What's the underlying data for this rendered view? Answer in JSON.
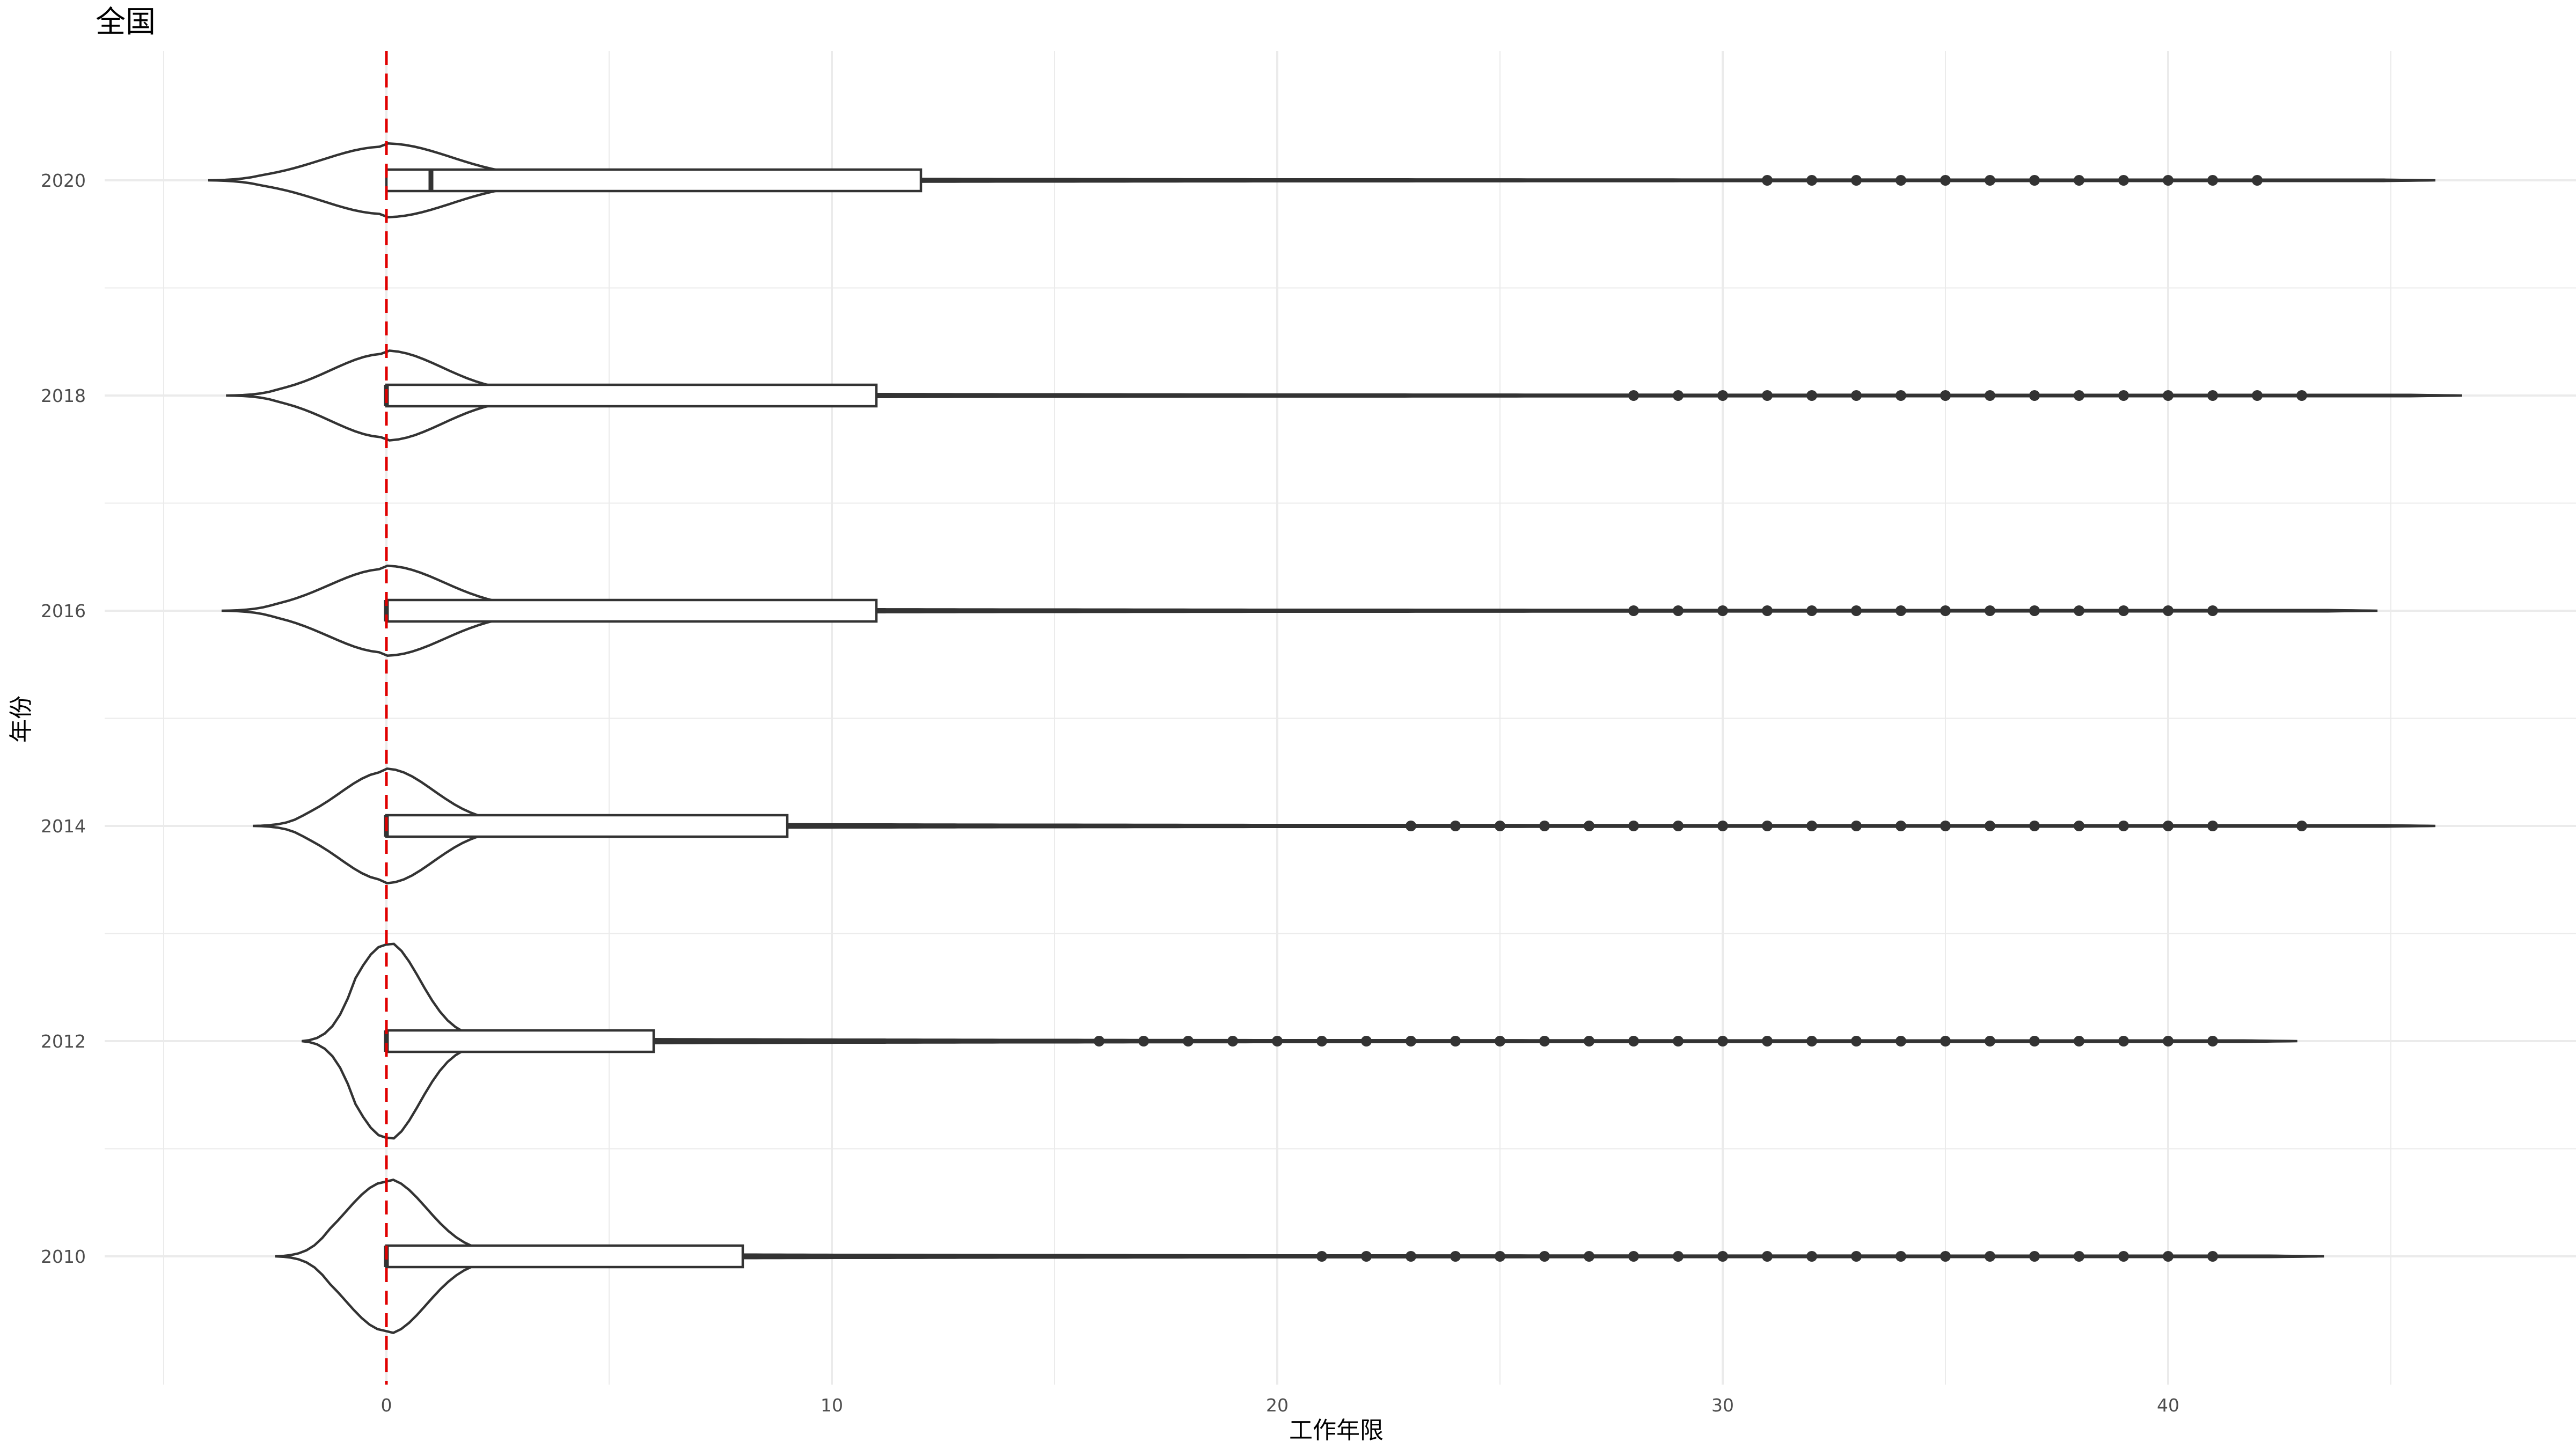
{
  "chart_data": {
    "type": "violin+box",
    "title": "全国",
    "xlabel": "工作年限",
    "ylabel": "年份",
    "xlim": [
      -5,
      49
    ],
    "x_ticks": [
      0,
      10,
      20,
      30,
      40
    ],
    "y_ticks": [
      "2010",
      "2012",
      "2014",
      "2016",
      "2018",
      "2020"
    ],
    "grid": true,
    "reference_line": {
      "x": 0,
      "color": "#e00000",
      "style": "dashed"
    },
    "series": [
      {
        "name": "2020",
        "violin_range": [
          -4,
          46
        ],
        "box": {
          "q1": 0,
          "median": 1,
          "q3": 12
        },
        "whisker_high": 30,
        "outliers": [
          31,
          32,
          33,
          34,
          35,
          36,
          37,
          38,
          39,
          40,
          41,
          42
        ]
      },
      {
        "name": "2018",
        "violin_range": [
          -3.6,
          46.6
        ],
        "box": {
          "q1": 0,
          "median": 0,
          "q3": 11
        },
        "whisker_high": 27,
        "outliers": [
          28,
          29,
          30,
          31,
          32,
          33,
          34,
          35,
          36,
          37,
          38,
          39,
          40,
          41,
          42,
          43
        ]
      },
      {
        "name": "2016",
        "violin_range": [
          -3.7,
          44.7
        ],
        "box": {
          "q1": 0,
          "median": 0,
          "q3": 11
        },
        "whisker_high": 27,
        "outliers": [
          28,
          29,
          30,
          31,
          32,
          33,
          34,
          35,
          36,
          37,
          38,
          39,
          40,
          41
        ]
      },
      {
        "name": "2014",
        "violin_range": [
          -3,
          46
        ],
        "box": {
          "q1": 0,
          "median": 0,
          "q3": 9
        },
        "whisker_high": 22,
        "outliers": [
          23,
          24,
          25,
          26,
          27,
          28,
          29,
          30,
          31,
          32,
          33,
          34,
          35,
          36,
          37,
          38,
          39,
          40,
          41,
          43
        ]
      },
      {
        "name": "2012",
        "violin_range": [
          -1.9,
          42.9
        ],
        "box": {
          "q1": 0,
          "median": 0,
          "q3": 6
        },
        "whisker_high": 15,
        "outliers": [
          16,
          17,
          18,
          19,
          20,
          21,
          22,
          23,
          24,
          25,
          26,
          27,
          28,
          29,
          30,
          31,
          32,
          33,
          34,
          35,
          36,
          37,
          38,
          39,
          40,
          41
        ]
      },
      {
        "name": "2010",
        "violin_range": [
          -2.5,
          43.5
        ],
        "box": {
          "q1": 0,
          "median": 0,
          "q3": 8
        },
        "whisker_high": 20,
        "outliers": [
          21,
          22,
          23,
          24,
          25,
          26,
          27,
          28,
          29,
          30,
          31,
          32,
          33,
          34,
          35,
          36,
          37,
          38,
          39,
          40,
          41
        ]
      }
    ]
  }
}
